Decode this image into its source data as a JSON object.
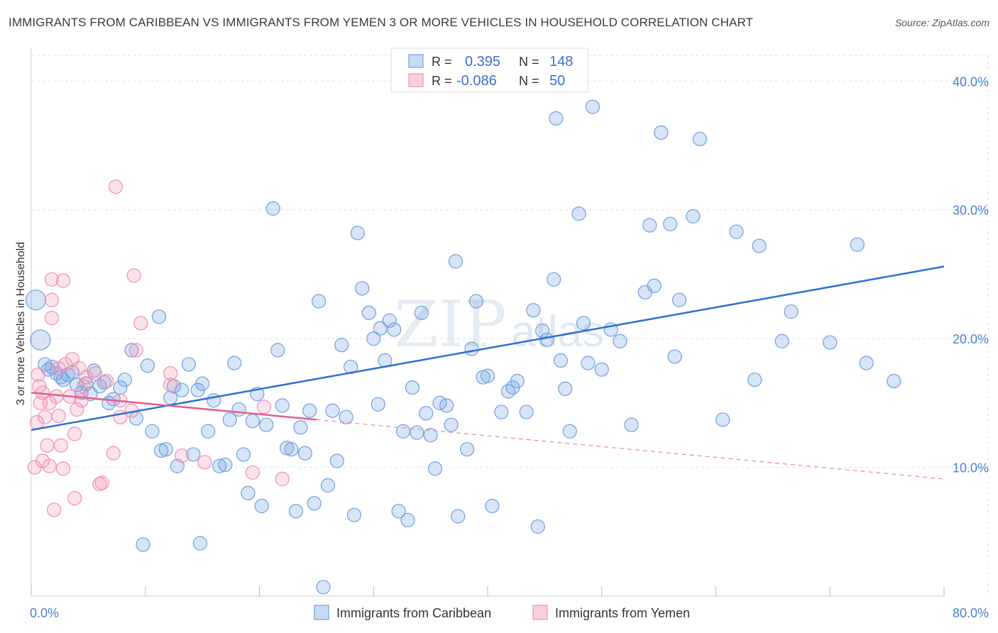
{
  "title": "IMMIGRANTS FROM CARIBBEAN VS IMMIGRANTS FROM YEMEN 3 OR MORE VEHICLES IN HOUSEHOLD CORRELATION CHART",
  "source": "Source: ZipAtlas.com",
  "watermark": {
    "zip": "ZIP",
    "atlas": "atlas"
  },
  "legend": {
    "rows": [
      {
        "r_label": "R =",
        "r_value": "0.395",
        "n_label": "N =",
        "n_value": "148",
        "color": "#6fa0e0"
      },
      {
        "r_label": "R =",
        "r_value": "-0.086",
        "n_label": "N =",
        "n_value": "50",
        "color": "#f08fb0"
      }
    ]
  },
  "chart_data": {
    "type": "scatter",
    "title": "IMMIGRANTS FROM CARIBBEAN VS IMMIGRANTS FROM YEMEN 3 OR MORE VEHICLES IN HOUSEHOLD CORRELATION CHART",
    "xlabel": "",
    "ylabel": "3 or more Vehicles in Household",
    "xlim": [
      0,
      80
    ],
    "ylim": [
      0,
      42
    ],
    "x_tick_labels": [
      "0.0%",
      "80.0%"
    ],
    "y_ticks": [
      10,
      20,
      30,
      40
    ],
    "y_tick_labels": [
      "10.0%",
      "20.0%",
      "30.0%",
      "40.0%"
    ],
    "grid": true,
    "legend_placement": "top-center",
    "series": [
      {
        "name": "Immigrants from Caribbean",
        "color": "#6fa0e0",
        "trend": {
          "x0": 0,
          "y0": 12.9,
          "x1": 80,
          "y1": 25.6,
          "dashed_from": null
        },
        "points": [
          [
            0.4,
            23.0
          ],
          [
            0.8,
            19.9
          ],
          [
            1.2,
            18.0
          ],
          [
            1.5,
            17.6
          ],
          [
            1.8,
            17.8
          ],
          [
            2.2,
            17.3
          ],
          [
            2.6,
            17.0
          ],
          [
            2.8,
            16.8
          ],
          [
            3.2,
            17.2
          ],
          [
            3.6,
            17.4
          ],
          [
            4.0,
            16.4
          ],
          [
            4.4,
            15.8
          ],
          [
            4.8,
            16.5
          ],
          [
            5.2,
            15.7
          ],
          [
            5.5,
            17.5
          ],
          [
            6.0,
            16.3
          ],
          [
            6.4,
            16.6
          ],
          [
            6.8,
            15.0
          ],
          [
            7.2,
            15.3
          ],
          [
            7.8,
            16.2
          ],
          [
            8.2,
            16.8
          ],
          [
            8.8,
            19.1
          ],
          [
            9.2,
            13.8
          ],
          [
            10.2,
            17.9
          ],
          [
            10.6,
            12.8
          ],
          [
            11.2,
            21.7
          ],
          [
            11.4,
            11.3
          ],
          [
            11.8,
            11.4
          ],
          [
            12.2,
            15.4
          ],
          [
            12.5,
            16.3
          ],
          [
            12.8,
            10.1
          ],
          [
            13.2,
            16.0
          ],
          [
            13.8,
            18.0
          ],
          [
            14.2,
            11.0
          ],
          [
            14.6,
            16.0
          ],
          [
            15.0,
            16.5
          ],
          [
            15.5,
            12.8
          ],
          [
            16.0,
            15.2
          ],
          [
            16.5,
            10.1
          ],
          [
            17.0,
            10.2
          ],
          [
            17.4,
            13.7
          ],
          [
            17.8,
            18.1
          ],
          [
            18.2,
            14.5
          ],
          [
            18.6,
            11.0
          ],
          [
            19.0,
            8.0
          ],
          [
            19.4,
            13.6
          ],
          [
            19.8,
            15.7
          ],
          [
            20.2,
            7.0
          ],
          [
            20.6,
            13.3
          ],
          [
            21.2,
            30.1
          ],
          [
            21.6,
            19.1
          ],
          [
            22.0,
            14.8
          ],
          [
            22.4,
            11.5
          ],
          [
            22.8,
            11.4
          ],
          [
            23.2,
            6.6
          ],
          [
            23.6,
            13.1
          ],
          [
            24.0,
            11.1
          ],
          [
            24.4,
            14.4
          ],
          [
            24.8,
            7.2
          ],
          [
            25.2,
            22.9
          ],
          [
            25.6,
            0.7
          ],
          [
            26.0,
            8.6
          ],
          [
            26.4,
            14.4
          ],
          [
            26.8,
            10.5
          ],
          [
            27.2,
            19.5
          ],
          [
            27.6,
            13.9
          ],
          [
            28.0,
            17.8
          ],
          [
            28.3,
            6.3
          ],
          [
            28.6,
            28.2
          ],
          [
            29.0,
            23.9
          ],
          [
            29.6,
            22.0
          ],
          [
            30.0,
            20.0
          ],
          [
            30.4,
            14.9
          ],
          [
            30.6,
            20.8
          ],
          [
            31.0,
            18.3
          ],
          [
            31.4,
            21.4
          ],
          [
            31.8,
            20.7
          ],
          [
            32.2,
            6.6
          ],
          [
            32.6,
            12.8
          ],
          [
            33.0,
            5.9
          ],
          [
            33.4,
            16.2
          ],
          [
            33.8,
            12.7
          ],
          [
            34.2,
            22.0
          ],
          [
            34.6,
            14.2
          ],
          [
            35.0,
            12.5
          ],
          [
            35.4,
            9.9
          ],
          [
            35.8,
            15.0
          ],
          [
            36.4,
            14.8
          ],
          [
            36.8,
            13.3
          ],
          [
            37.2,
            26.0
          ],
          [
            37.4,
            6.2
          ],
          [
            38.2,
            11.4
          ],
          [
            38.6,
            19.2
          ],
          [
            39.0,
            22.9
          ],
          [
            39.6,
            17.0
          ],
          [
            40.0,
            17.1
          ],
          [
            40.4,
            7.0
          ],
          [
            41.2,
            14.3
          ],
          [
            41.8,
            15.9
          ],
          [
            42.2,
            16.2
          ],
          [
            42.6,
            16.7
          ],
          [
            43.4,
            14.3
          ],
          [
            44.0,
            22.2
          ],
          [
            44.4,
            5.4
          ],
          [
            44.8,
            20.6
          ],
          [
            45.2,
            19.9
          ],
          [
            45.8,
            24.6
          ],
          [
            46.4,
            18.3
          ],
          [
            46.8,
            16.1
          ],
          [
            47.2,
            12.8
          ],
          [
            48.0,
            29.7
          ],
          [
            48.4,
            21.2
          ],
          [
            48.8,
            18.1
          ],
          [
            49.2,
            38.0
          ],
          [
            50.0,
            17.6
          ],
          [
            50.8,
            20.7
          ],
          [
            51.6,
            19.8
          ],
          [
            52.6,
            13.3
          ],
          [
            53.8,
            23.6
          ],
          [
            54.2,
            28.8
          ],
          [
            54.6,
            24.1
          ],
          [
            55.2,
            36.0
          ],
          [
            56.0,
            28.9
          ],
          [
            56.4,
            18.6
          ],
          [
            56.8,
            23.0
          ],
          [
            58.0,
            29.5
          ],
          [
            58.6,
            35.5
          ],
          [
            60.6,
            13.7
          ],
          [
            61.8,
            28.3
          ],
          [
            63.4,
            16.8
          ],
          [
            63.8,
            27.2
          ],
          [
            65.8,
            19.8
          ],
          [
            66.6,
            22.1
          ],
          [
            70.0,
            19.7
          ],
          [
            72.4,
            27.3
          ],
          [
            73.2,
            18.1
          ],
          [
            75.6,
            16.7
          ],
          [
            46.0,
            37.1
          ],
          [
            9.8,
            4.0
          ],
          [
            14.8,
            4.1
          ]
        ]
      },
      {
        "name": "Immigrants from Yemen",
        "color": "#f08fb0",
        "trend": {
          "x0": 0,
          "y0": 15.8,
          "x1": 80,
          "y1": 9.1,
          "dashed_from": 25
        },
        "points": [
          [
            0.3,
            10.0
          ],
          [
            0.5,
            13.5
          ],
          [
            0.6,
            17.2
          ],
          [
            0.7,
            16.3
          ],
          [
            0.8,
            15.0
          ],
          [
            1.0,
            10.5
          ],
          [
            1.0,
            15.8
          ],
          [
            1.2,
            13.9
          ],
          [
            1.4,
            11.7
          ],
          [
            1.6,
            15.0
          ],
          [
            1.6,
            10.1
          ],
          [
            1.8,
            21.6
          ],
          [
            1.8,
            23.0
          ],
          [
            1.8,
            24.6
          ],
          [
            2.0,
            6.7
          ],
          [
            2.2,
            15.5
          ],
          [
            2.4,
            17.7
          ],
          [
            2.4,
            14.0
          ],
          [
            2.6,
            11.7
          ],
          [
            2.8,
            24.5
          ],
          [
            2.8,
            9.9
          ],
          [
            3.0,
            18.0
          ],
          [
            3.4,
            15.5
          ],
          [
            3.6,
            18.4
          ],
          [
            3.8,
            12.6
          ],
          [
            3.8,
            7.6
          ],
          [
            4.0,
            14.5
          ],
          [
            4.2,
            17.7
          ],
          [
            4.4,
            15.2
          ],
          [
            4.6,
            16.3
          ],
          [
            4.8,
            17.0
          ],
          [
            5.6,
            17.3
          ],
          [
            6.0,
            8.7
          ],
          [
            6.2,
            8.8
          ],
          [
            6.6,
            16.7
          ],
          [
            7.2,
            11.1
          ],
          [
            7.4,
            31.8
          ],
          [
            7.8,
            13.9
          ],
          [
            7.8,
            15.2
          ],
          [
            8.8,
            14.4
          ],
          [
            9.0,
            24.9
          ],
          [
            9.2,
            19.1
          ],
          [
            9.6,
            21.2
          ],
          [
            12.2,
            17.3
          ],
          [
            12.2,
            16.4
          ],
          [
            13.2,
            10.9
          ],
          [
            15.2,
            10.4
          ],
          [
            19.4,
            9.6
          ],
          [
            20.4,
            14.7
          ],
          [
            22.0,
            9.1
          ]
        ]
      }
    ]
  }
}
